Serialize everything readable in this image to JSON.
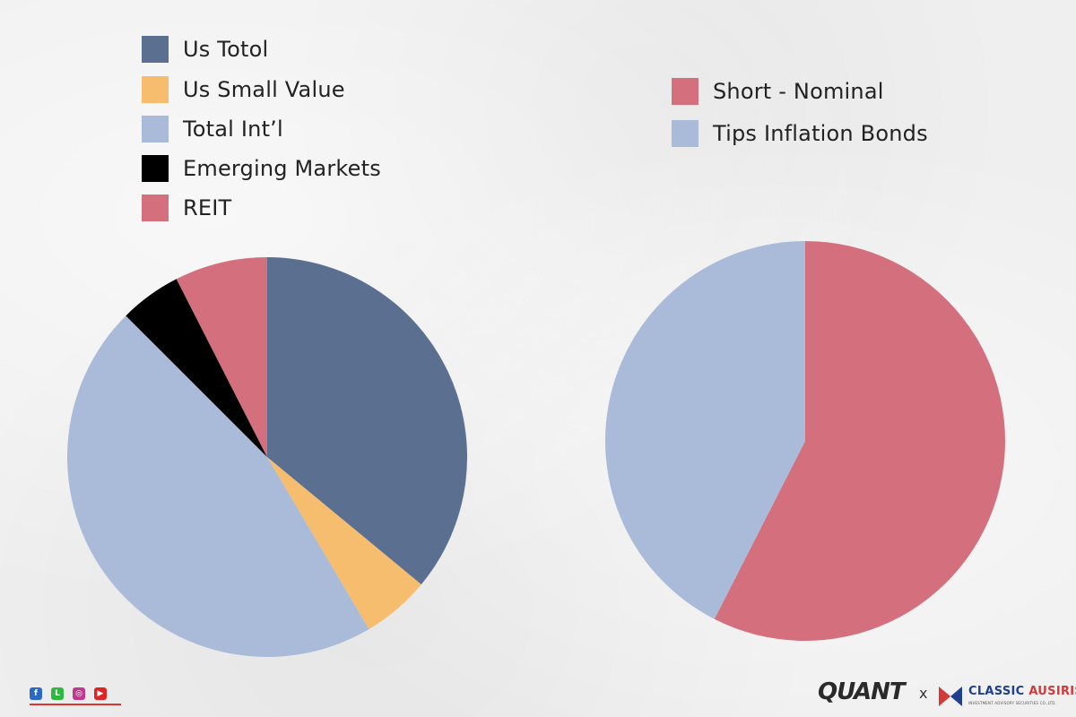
{
  "chart_data": [
    {
      "type": "pie",
      "series": [
        {
          "name": "Us Totol",
          "value": 36,
          "color": "#5b6f90"
        },
        {
          "name": "Us Small Value",
          "value": 5.5,
          "color": "#f6bd6f"
        },
        {
          "name": "Total Int'l",
          "value": 46,
          "color": "#aabbd9"
        },
        {
          "name": "Emerging Markets",
          "value": 5,
          "color": "#000000"
        },
        {
          "name": "REIT",
          "value": 7.5,
          "color": "#d4707d"
        }
      ],
      "legend_labels": [
        "Us Totol",
        "Us Small Value",
        "Total Int’l",
        "Emerging Markets",
        "REIT"
      ],
      "legend_position": "top-left",
      "start_angle": "12 o'clock",
      "direction": "clockwise"
    },
    {
      "type": "pie",
      "series": [
        {
          "name": "Short - Nominal",
          "value": 57.5,
          "color": "#d4707d"
        },
        {
          "name": "Tips Inflation Bonds",
          "value": 42.5,
          "color": "#aabbd9"
        }
      ],
      "legend_labels": [
        "Short - Nominal",
        "Tips Inflation Bonds"
      ],
      "legend_position": "top-right",
      "start_angle": "12 o'clock",
      "direction": "clockwise"
    }
  ],
  "footer": {
    "socials": [
      {
        "icon": "facebook-icon",
        "glyph": "f",
        "color": "#2d68c4"
      },
      {
        "icon": "line-icon",
        "glyph": "L",
        "color": "#2fb83f"
      },
      {
        "icon": "instagram-icon",
        "glyph": "◎",
        "color": "#c0398f"
      },
      {
        "icon": "youtube-icon",
        "glyph": "▶",
        "color": "#e02424"
      }
    ],
    "brand_quant": "QUANT",
    "brand_separator": "x",
    "brand_classic_1": "CLASSIC",
    "brand_classic_2": "AUSIRIS",
    "brand_sub": "INVESTMENT ADVISORY SECURITIES CO.,LTD."
  }
}
